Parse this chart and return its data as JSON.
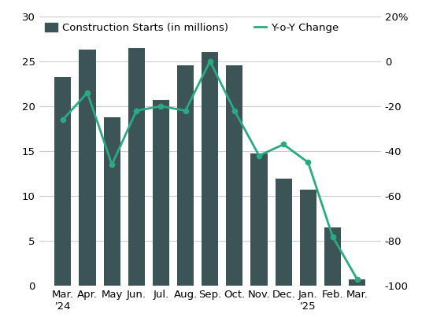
{
  "months": [
    "Mar.\n'24",
    "Apr.",
    "May",
    "Jun.",
    "Jul.",
    "Aug.",
    "Sep.",
    "Oct.",
    "Nov.",
    "Dec.",
    "Jan.\n'25",
    "Feb.",
    "Mar."
  ],
  "bar_values": [
    23.2,
    26.3,
    18.8,
    26.5,
    20.7,
    24.5,
    26.0,
    24.5,
    14.7,
    11.9,
    10.7,
    6.5,
    0.7
  ],
  "yoy_values": [
    -26,
    -14,
    -46,
    -22,
    -20,
    -22,
    0,
    -22,
    -42,
    -37,
    -45,
    -78,
    -97
  ],
  "bar_color": "#3d5457",
  "line_color": "#2aaa82",
  "bar_ylim": [
    0,
    30
  ],
  "bar_yticks": [
    0,
    5,
    10,
    15,
    20,
    25,
    30
  ],
  "yoy_ylim": [
    -100,
    20
  ],
  "yoy_yticks": [
    -100,
    -80,
    -60,
    -40,
    -20,
    0,
    20
  ],
  "yoy_yticklabels": [
    "-100",
    "-80",
    "-60",
    "-40",
    "-20",
    "0",
    "20%"
  ],
  "legend_bar_label": "Construction Starts (in millions)",
  "legend_line_label": "Y-o-Y Change",
  "background_color": "#ffffff",
  "grid_color": "#cccccc",
  "tick_fontsize": 9.5,
  "legend_fontsize": 9.5
}
